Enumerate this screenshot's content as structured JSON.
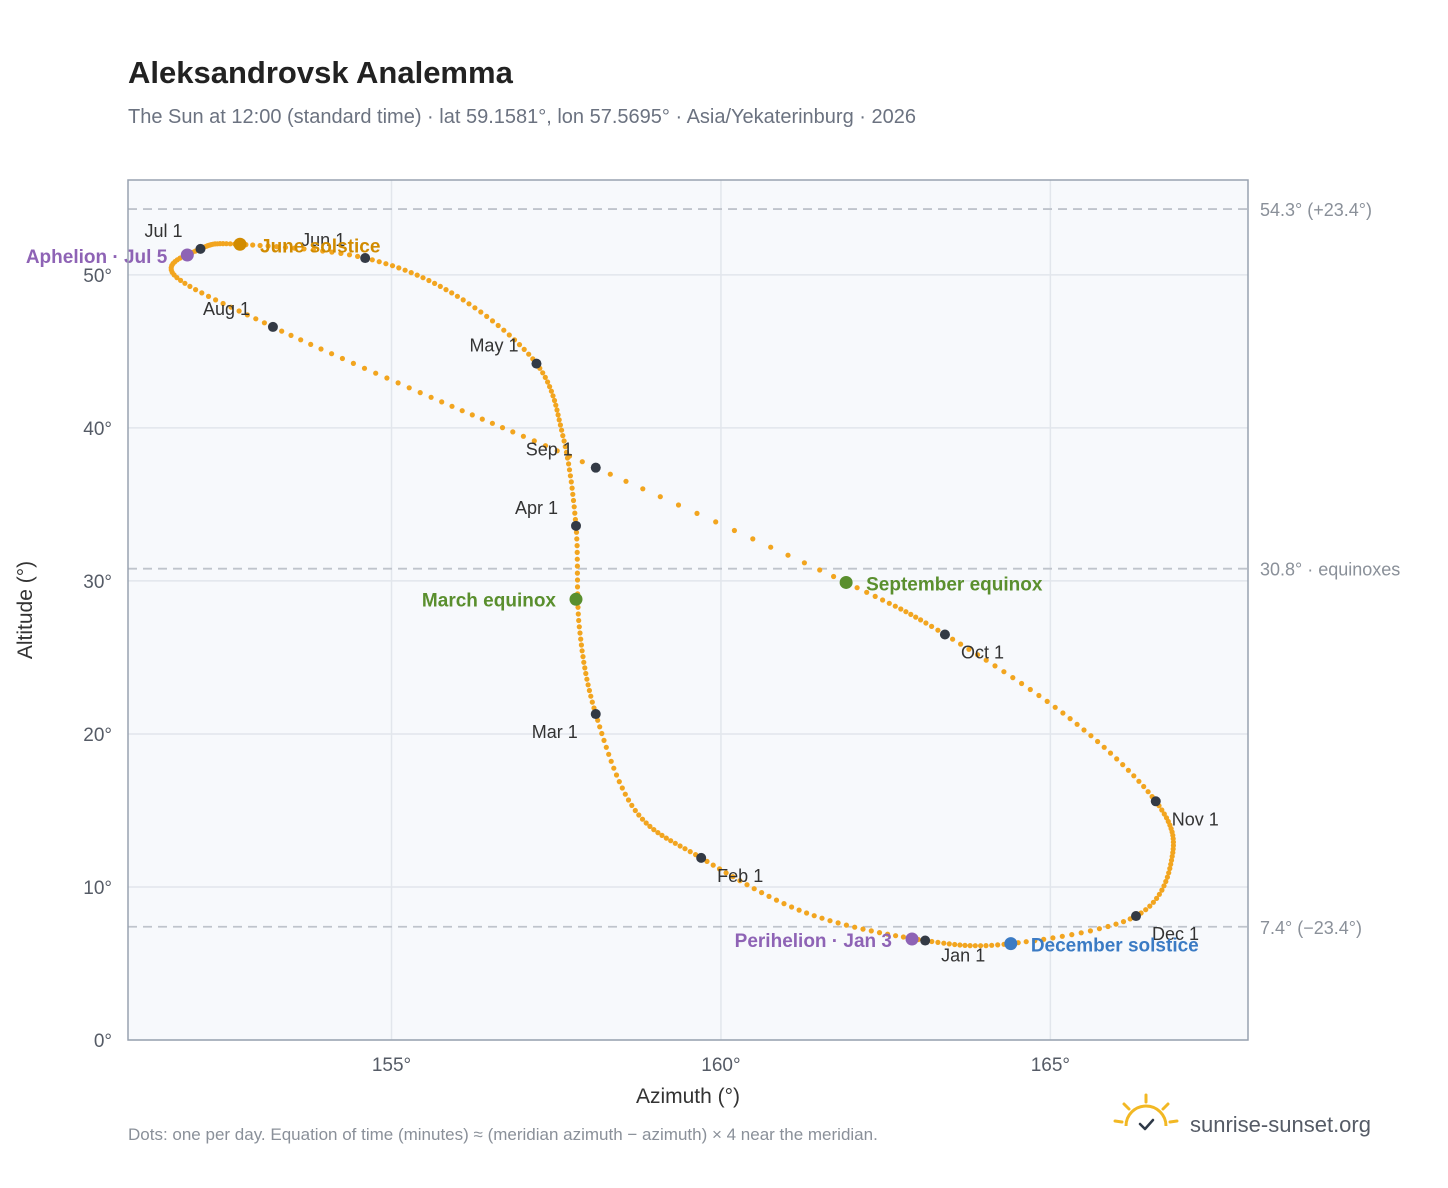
{
  "header": {
    "title": "Aleksandrovsk Analemma",
    "subtitle": "The Sun at 12:00 (standard time) · lat 59.1581°, lon 57.5695° · Asia/Yekaterinburg · 2026"
  },
  "footer": {
    "note": "Dots: one per day. Equation of time (minutes) ≈ (meridian azimuth − azimuth) × 4 near the meridian.",
    "brand": "sunrise-sunset.org",
    "brand_icon": "sun-icon"
  },
  "chart_data": {
    "type": "scatter",
    "xlabel": "Azimuth (°)",
    "ylabel": "Altitude (°)",
    "xlim": [
      151,
      168
    ],
    "ylim": [
      0,
      56.2
    ],
    "x_ticks": [
      {
        "value": 155,
        "label": "155°"
      },
      {
        "value": 160,
        "label": "160°"
      },
      {
        "value": 165,
        "label": "165°"
      }
    ],
    "y_ticks": [
      {
        "value": 0,
        "label": "0°"
      },
      {
        "value": 10,
        "label": "10°"
      },
      {
        "value": 20,
        "label": "20°"
      },
      {
        "value": 30,
        "label": "30°"
      },
      {
        "value": 40,
        "label": "40°"
      },
      {
        "value": 50,
        "label": "50°"
      }
    ],
    "grid": true,
    "reference_lines": [
      {
        "y": 54.3,
        "label": "54.3° (+23.4°)"
      },
      {
        "y": 30.8,
        "label": "30.8° · equinoxes"
      },
      {
        "y": 7.4,
        "label": "7.4° (−23.4°)"
      }
    ],
    "monthly_points": [
      {
        "label": "Jan 1",
        "x": 163.1,
        "y": 6.5
      },
      {
        "label": "Feb 1",
        "x": 159.7,
        "y": 11.9
      },
      {
        "label": "Mar 1",
        "x": 158.1,
        "y": 21.3
      },
      {
        "label": "Apr 1",
        "x": 157.8,
        "y": 33.6
      },
      {
        "label": "May 1",
        "x": 157.2,
        "y": 44.2
      },
      {
        "label": "Jun 1",
        "x": 154.6,
        "y": 51.1
      },
      {
        "label": "Jul 1",
        "x": 152.1,
        "y": 51.7
      },
      {
        "label": "Aug 1",
        "x": 153.2,
        "y": 46.6
      },
      {
        "label": "Sep 1",
        "x": 158.1,
        "y": 37.4
      },
      {
        "label": "Oct 1",
        "x": 163.4,
        "y": 26.5
      },
      {
        "label": "Nov 1",
        "x": 166.6,
        "y": 15.6
      },
      {
        "label": "Dec 1",
        "x": 166.3,
        "y": 8.1
      }
    ],
    "events": [
      {
        "label": "March equinox",
        "x": 157.8,
        "y": 28.8,
        "color": "#5a8f2e"
      },
      {
        "label": "June solstice",
        "x": 152.7,
        "y": 52.0,
        "color": "#d18b00"
      },
      {
        "label": "September equinox",
        "x": 161.9,
        "y": 29.9,
        "color": "#5a8f2e"
      },
      {
        "label": "December solstice",
        "x": 164.4,
        "y": 6.3,
        "color": "#3b7bc4"
      },
      {
        "label": "Perihelion · Jan 3",
        "x": 162.9,
        "y": 6.6,
        "color": "#8e63b5"
      },
      {
        "label": "Aphelion · Jul 5",
        "x": 151.9,
        "y": 51.3,
        "color": "#8e63b5"
      }
    ],
    "colors": {
      "daily_dots": "#f2a51f",
      "month_marker": "#333a45",
      "reference_line": "#bfc4cc",
      "plot_background": "#f7f9fc",
      "grid": "#e2e6ec",
      "frame": "#98a2b0"
    }
  }
}
